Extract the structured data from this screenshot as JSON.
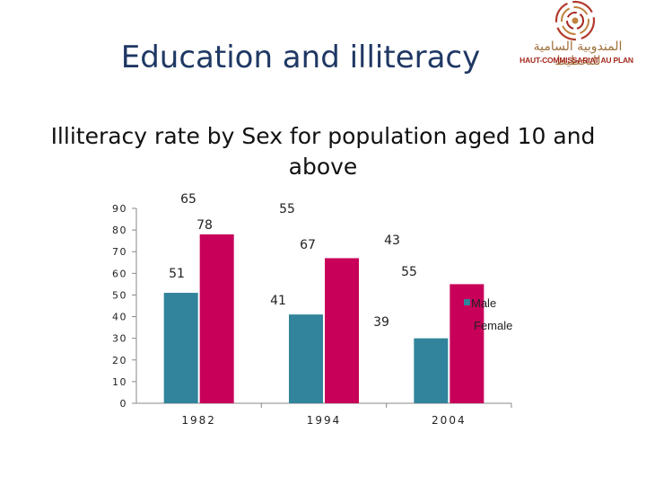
{
  "header": {
    "title": "Education and illiteracy",
    "logo_arabic": "المندوبية السامية للتخطيط",
    "logo_french": "HAUT-COMMISSARIAT AU PLAN"
  },
  "colors": {
    "male": "#31849b",
    "female": "#c8005a",
    "title": "#1f3864"
  },
  "chart_data": {
    "type": "bar",
    "title": "Illiteracy rate by Sex for population aged 10 and above",
    "categories": [
      "1982",
      "1994",
      "2004"
    ],
    "series": [
      {
        "name": "Male",
        "values": [
          51,
          41,
          30
        ]
      },
      {
        "name": "Female",
        "values": [
          78,
          67,
          55
        ]
      }
    ],
    "annotations": [
      "65",
      "55",
      "43",
      "39"
    ],
    "ylim": [
      0,
      90
    ],
    "yticks": [
      0,
      10,
      20,
      30,
      40,
      50,
      60,
      70,
      80,
      90
    ],
    "grid": false,
    "legend": "right"
  }
}
